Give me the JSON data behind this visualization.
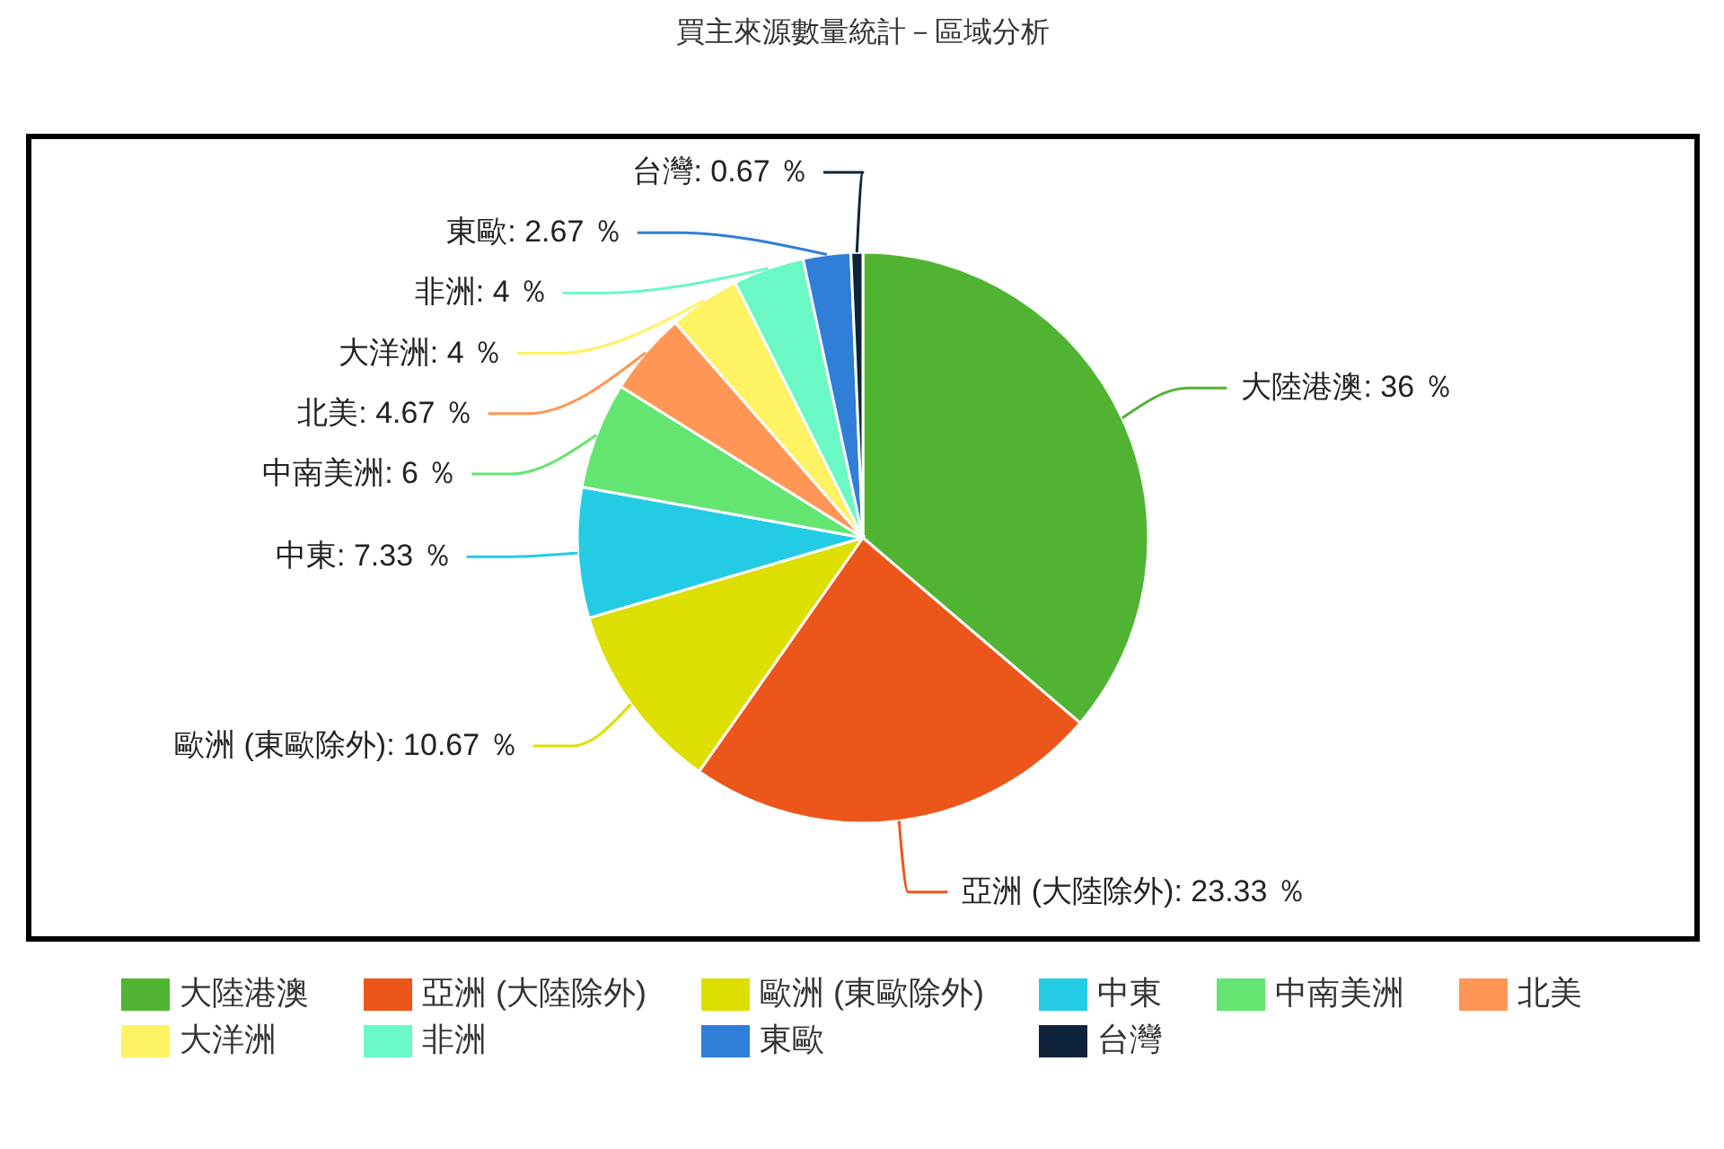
{
  "chart_data": {
    "type": "pie",
    "title": "買主來源數量統計－區域分析",
    "categories": [
      "大陸港澳",
      "亞洲 (大陸除外)",
      "歐洲 (東歐除外)",
      "中東",
      "中南美洲",
      "北美",
      "大洋洲",
      "非洲",
      "東歐",
      "台灣"
    ],
    "values": [
      36,
      23.33,
      10.67,
      7.33,
      6,
      4.67,
      4,
      4,
      2.67,
      0.67
    ],
    "colors": [
      "#50b432",
      "#ed561b",
      "#dddf00",
      "#24cbe5",
      "#64e572",
      "#ff9655",
      "#fff263",
      "#6af9c4",
      "#2f7ed8",
      "#0d233a"
    ],
    "value_labels": [
      "大陸港澳: 36 ％",
      "亞洲 (大陸除外): 23.33 ％",
      "歐洲 (東歐除外): 10.67 ％",
      "中東: 7.33 ％",
      "中南美洲: 6 ％",
      "北美: 4.67 ％",
      "大洋洲: 4 ％",
      "非洲: 4 ％",
      "東歐: 2.67 ％",
      "台灣: 0.67 ％"
    ],
    "legend": "bottom"
  }
}
